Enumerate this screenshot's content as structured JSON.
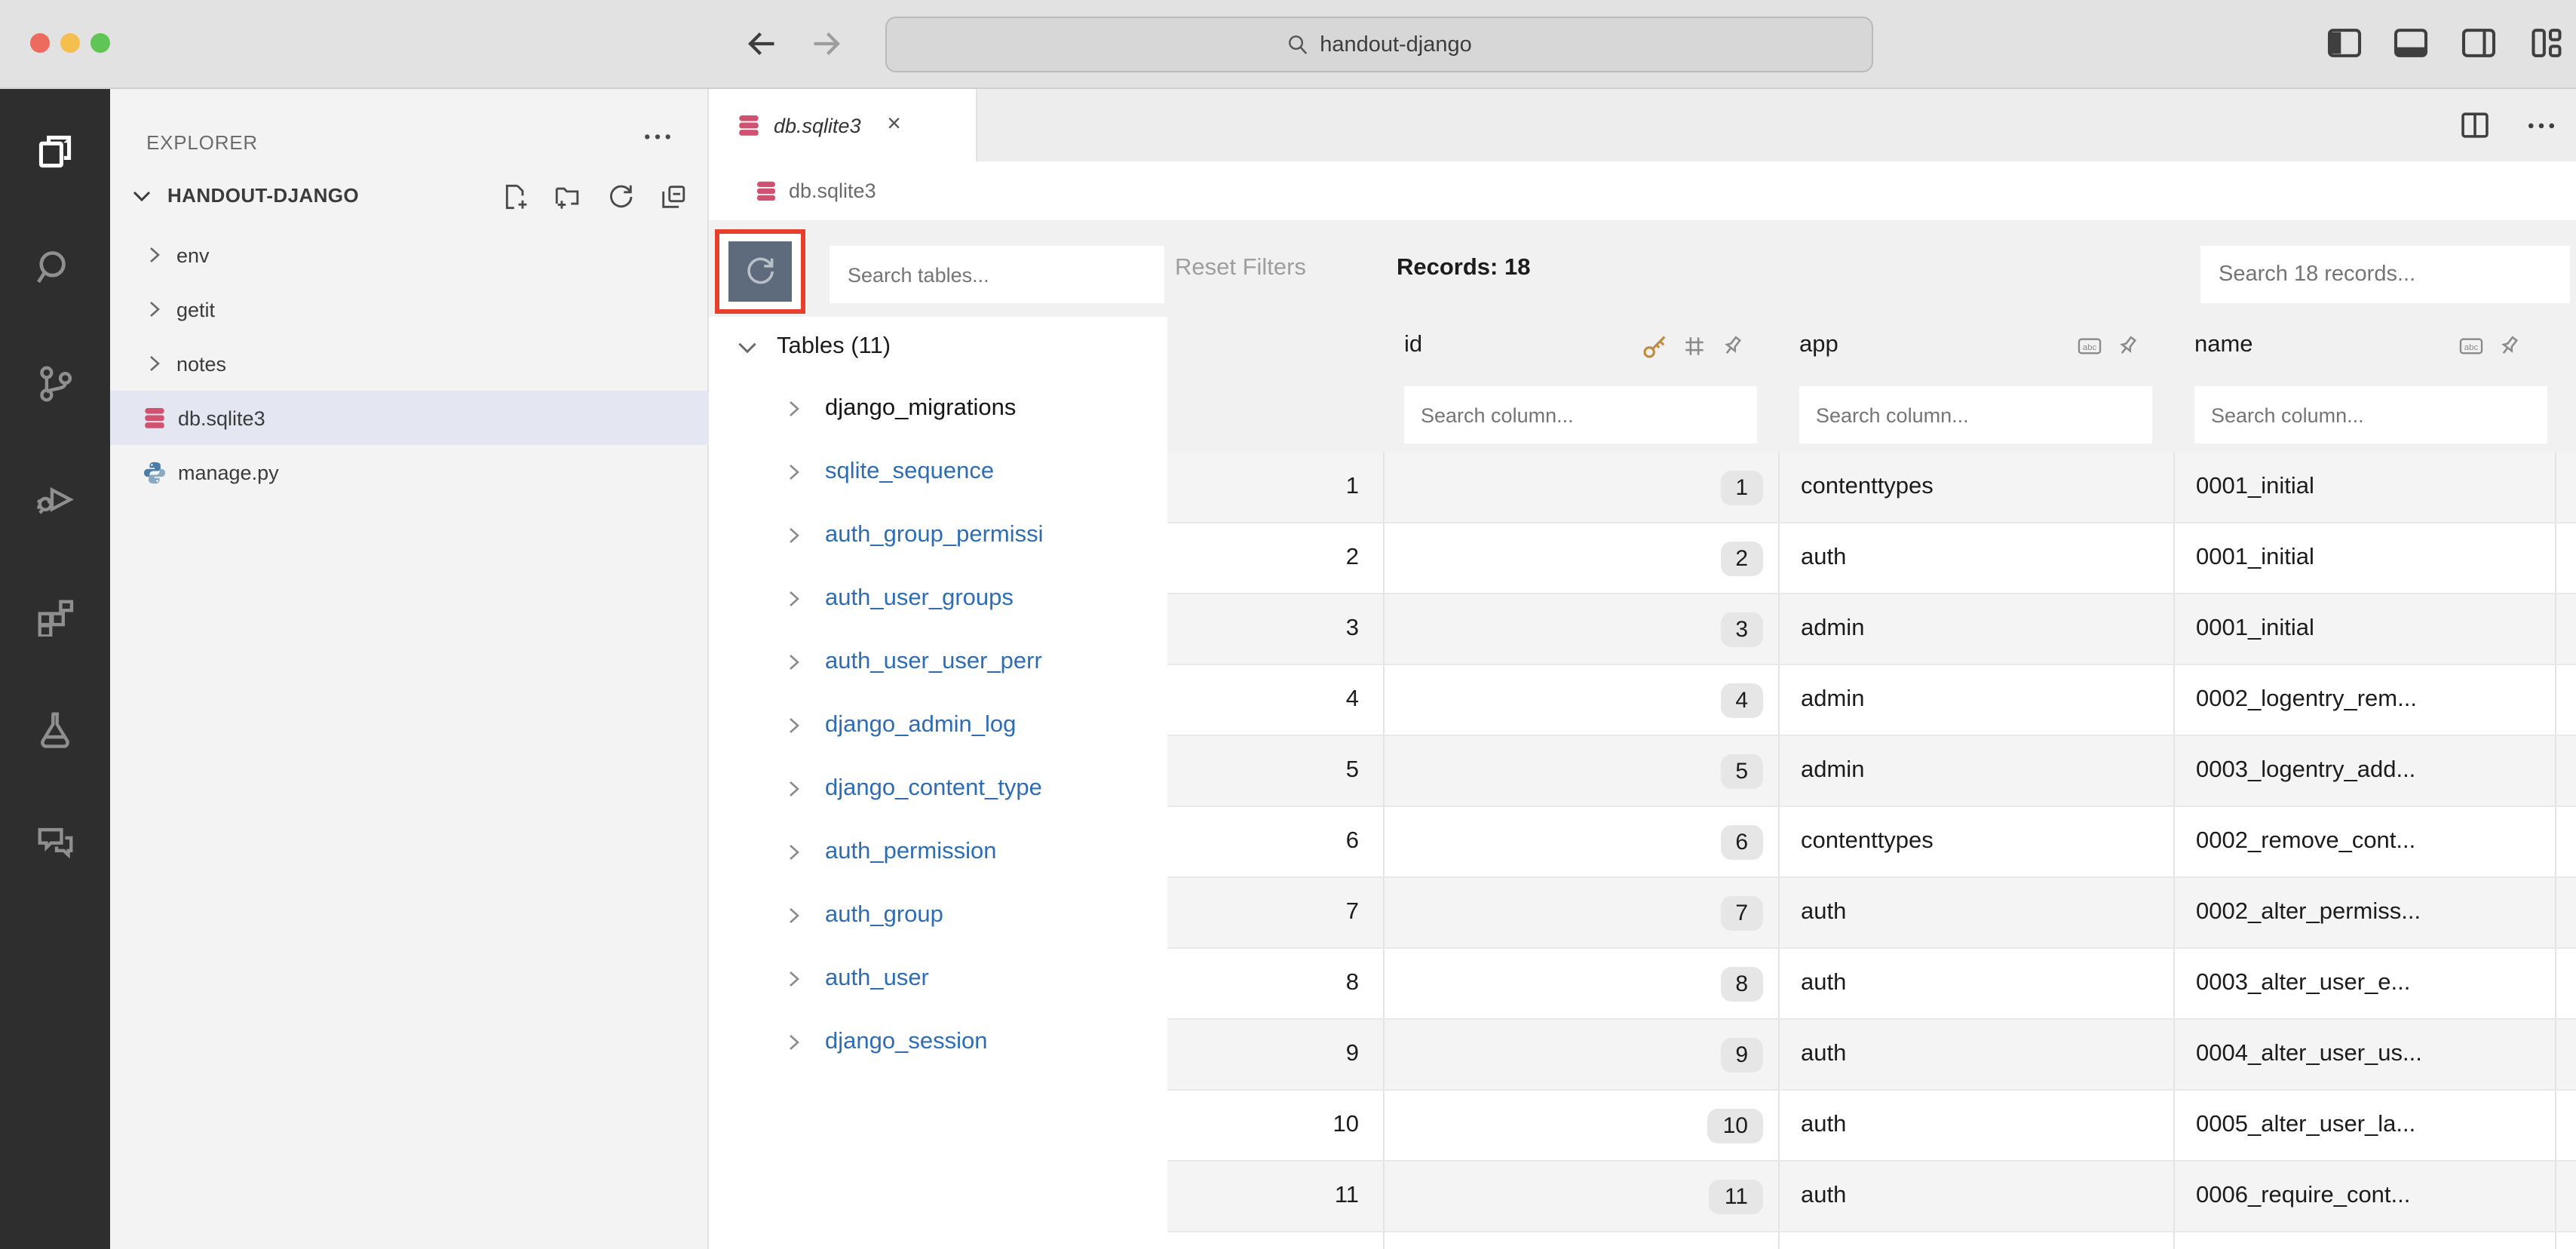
{
  "colors": {
    "highlight_red": "#e7402a",
    "refresh_button_bg": "#5d6b7c",
    "link_blue": "#2e6db4",
    "selected_row_bg": "#e4e6f1",
    "db_icon_pink": "#d25070",
    "key_icon_gold": "#bf8b3d",
    "activity_bar_bg": "#2e2e2e"
  },
  "title_bar": {
    "search_value": "handout-django"
  },
  "activity_bar": {
    "items": [
      "explorer",
      "search",
      "source-control",
      "run-debug",
      "extensions",
      "testing",
      "comments"
    ]
  },
  "sidebar": {
    "header": "EXPLORER",
    "section": "HANDOUT-DJANGO",
    "items": [
      {
        "label": "env",
        "kind": "folder"
      },
      {
        "label": "getit",
        "kind": "folder"
      },
      {
        "label": "notes",
        "kind": "folder"
      },
      {
        "label": "db.sqlite3",
        "kind": "database",
        "selected": true
      },
      {
        "label": "manage.py",
        "kind": "python"
      }
    ]
  },
  "editor": {
    "tab_label": "db.sqlite3",
    "breadcrumb": "db.sqlite3"
  },
  "viewer": {
    "toolbar": {
      "search_tables_placeholder": "Search tables...",
      "reset_filters_label": "Reset Filters",
      "records_label": "Records: 18",
      "search_records_placeholder": "Search 18 records..."
    },
    "tables_panel": {
      "header": "Tables (11)",
      "items": [
        {
          "label": "django_migrations",
          "current": true
        },
        {
          "label": "sqlite_sequence"
        },
        {
          "label": "auth_group_permissi"
        },
        {
          "label": "auth_user_groups"
        },
        {
          "label": "auth_user_user_perr"
        },
        {
          "label": "django_admin_log"
        },
        {
          "label": "django_content_type"
        },
        {
          "label": "auth_permission"
        },
        {
          "label": "auth_group"
        },
        {
          "label": "auth_user"
        },
        {
          "label": "django_session"
        }
      ]
    },
    "grid": {
      "columns": [
        {
          "label": "id",
          "icons": [
            "key",
            "hash",
            "pin"
          ]
        },
        {
          "label": "app",
          "icons": [
            "abc",
            "pin"
          ]
        },
        {
          "label": "name",
          "icons": [
            "abc",
            "pin"
          ]
        }
      ],
      "column_search_placeholder": "Search column...",
      "rows": [
        {
          "n": "1",
          "id": "1",
          "app": "contenttypes",
          "name": "0001_initial"
        },
        {
          "n": "2",
          "id": "2",
          "app": "auth",
          "name": "0001_initial"
        },
        {
          "n": "3",
          "id": "3",
          "app": "admin",
          "name": "0001_initial"
        },
        {
          "n": "4",
          "id": "4",
          "app": "admin",
          "name": "0002_logentry_rem..."
        },
        {
          "n": "5",
          "id": "5",
          "app": "admin",
          "name": "0003_logentry_add..."
        },
        {
          "n": "6",
          "id": "6",
          "app": "contenttypes",
          "name": "0002_remove_cont..."
        },
        {
          "n": "7",
          "id": "7",
          "app": "auth",
          "name": "0002_alter_permiss..."
        },
        {
          "n": "8",
          "id": "8",
          "app": "auth",
          "name": "0003_alter_user_e..."
        },
        {
          "n": "9",
          "id": "9",
          "app": "auth",
          "name": "0004_alter_user_us..."
        },
        {
          "n": "10",
          "id": "10",
          "app": "auth",
          "name": "0005_alter_user_la..."
        },
        {
          "n": "11",
          "id": "11",
          "app": "auth",
          "name": "0006_require_cont..."
        }
      ]
    }
  }
}
